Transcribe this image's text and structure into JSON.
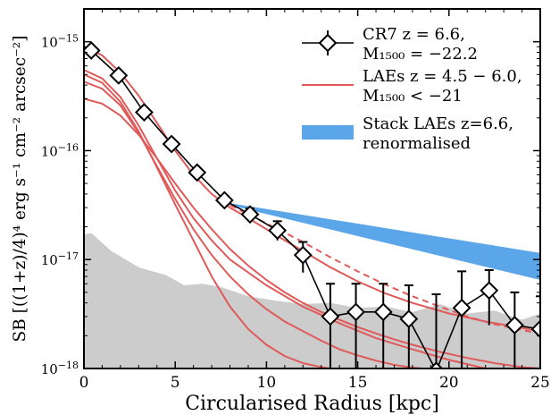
{
  "chart_data": {
    "type": "line",
    "xlabel": "Circularised Radius [kpc]",
    "ylabel": "SB [((1+z)/4)⁴ erg s⁻¹ cm⁻² arcsec⁻²]",
    "xlim": [
      0,
      25
    ],
    "ylim": [
      1e-18,
      2e-15
    ],
    "yscale": "log",
    "x_ticks": [
      0,
      5,
      10,
      15,
      20,
      25
    ],
    "x_tick_labels": [
      "0",
      "5",
      "10",
      "15",
      "20",
      "25"
    ],
    "y_ticks": [
      1e-18,
      1e-17,
      1e-16,
      1e-15
    ],
    "y_tick_labels": [
      {
        "base": "10",
        "exp": "−18"
      },
      {
        "base": "10",
        "exp": "−17"
      },
      {
        "base": "10",
        "exp": "−16"
      },
      {
        "base": "10",
        "exp": "−15"
      }
    ],
    "legend_position": "top-right",
    "legend": [
      {
        "line1": "CR7 z = 6.6,",
        "line2": "M₁₅₀₀ = −22.2",
        "marker": "diamond-errorbar",
        "color": "#000000"
      },
      {
        "line1": "LAEs z = 4.5 − 6.0,",
        "line2": "M₁₅₀₀ < −21",
        "marker": "line",
        "color": "#e05a5a"
      },
      {
        "line1": "Stack LAEs z=6.6,",
        "line2": "renormalised",
        "marker": "band",
        "color": "#5aa6e8"
      }
    ],
    "colors": {
      "cr7": "#000000",
      "laes": "#e05a5a",
      "stack": "#5aa6e8",
      "noise": "#cccccc"
    },
    "noise_background": {
      "x": [
        0,
        0.4,
        1.5,
        3.0,
        4.5,
        5.5,
        6.5,
        7.5,
        9,
        10.5,
        12,
        13.5,
        15,
        16.5,
        18,
        19.5,
        21,
        22.5,
        24,
        25
      ],
      "y": [
        1.7e-17,
        1.75e-17,
        1.2e-17,
        8.5e-18,
        7.2e-18,
        5.8e-18,
        6e-18,
        5.6e-18,
        4.6e-18,
        4.2e-18,
        3.9e-18,
        4e-18,
        3.6e-18,
        3.7e-18,
        3.3e-18,
        3.9e-18,
        3.2e-18,
        3.4e-18,
        2.8e-18,
        3.2e-18
      ]
    },
    "stack_band": {
      "x": [
        7.5,
        25
      ],
      "upper": [
        3.4e-17,
        1.15e-17
      ],
      "lower": [
        3.3e-17,
        6.5e-18
      ]
    },
    "lae_profiles": [
      {
        "x": [
          0,
          1,
          2,
          3,
          4,
          5,
          6,
          7,
          8,
          9,
          10,
          11,
          12,
          13.5,
          15,
          16.5,
          18,
          20,
          22,
          25
        ],
        "y": [
          9e-16,
          7.5e-16,
          5.2e-16,
          3.2e-16,
          1.8e-16,
          1e-16,
          6e-17,
          4e-17,
          3e-17,
          2.4e-17,
          1.9e-17,
          1.5e-17,
          1.2e-17,
          8.5e-18,
          6.3e-18,
          4.9e-18,
          4e-18,
          3.2e-18,
          2.7e-18,
          2.2e-18
        ]
      },
      {
        "x": [
          0,
          1,
          2,
          3,
          4,
          5,
          6,
          7,
          8,
          10,
          12,
          14,
          16,
          18,
          20,
          22,
          25
        ],
        "y": [
          5.5e-16,
          4.6e-16,
          3.1e-16,
          1.7e-16,
          8.5e-17,
          4.3e-17,
          2.4e-17,
          1.5e-17,
          1e-17,
          5.8e-18,
          3.7e-18,
          2.6e-18,
          1.9e-18,
          1.5e-18,
          1.2e-18,
          1e-18,
          8e-19
        ]
      },
      {
        "x": [
          0,
          1,
          2,
          3,
          4,
          5,
          6,
          7,
          8,
          9,
          10,
          11,
          12,
          13,
          13.5
        ],
        "y": [
          5e-16,
          4.2e-16,
          2.8e-16,
          1.5e-16,
          7e-17,
          3.2e-17,
          1.5e-17,
          7e-18,
          3.7e-18,
          2.3e-18,
          1.65e-18,
          1.3e-18,
          1.12e-18,
          1.03e-18,
          1e-18
        ]
      },
      {
        "x": [
          0,
          1,
          2,
          3,
          4,
          5,
          6,
          7,
          8,
          9,
          10,
          11,
          12,
          13,
          14,
          15,
          16,
          17,
          18,
          18.5
        ],
        "y": [
          4.3e-16,
          3.7e-16,
          2.6e-16,
          1.45e-16,
          7.2e-17,
          3.6e-17,
          1.9e-17,
          1.1e-17,
          7e-18,
          4.8e-18,
          3.5e-18,
          2.7e-18,
          2.2e-18,
          1.8e-18,
          1.5e-18,
          1.32e-18,
          1.18e-18,
          1.08e-18,
          1.02e-18,
          1e-18
        ]
      },
      {
        "x": [
          0,
          1,
          2,
          3,
          4,
          5,
          6,
          7,
          8,
          9,
          10,
          11,
          12,
          13,
          14,
          15,
          16,
          17,
          18,
          19.5,
          21,
          22.5,
          24,
          25
        ],
        "y": [
          3e-16,
          2.7e-16,
          2.1e-16,
          1.4e-16,
          8.5e-17,
          5e-17,
          3e-17,
          1.9e-17,
          1.25e-17,
          8.8e-18,
          6.5e-18,
          5e-18,
          4e-18,
          3.3e-18,
          2.8e-18,
          2.4e-18,
          2.1e-18,
          1.85e-18,
          1.65e-18,
          1.42e-18,
          1.25e-18,
          1.12e-18,
          1.03e-18,
          1e-18
        ]
      }
    ],
    "lae_dashed_extension": {
      "x": [
        7.5,
        9,
        10.5,
        12,
        13.5,
        15,
        16.5,
        18,
        19.5,
        21,
        22.5,
        24,
        25
      ],
      "y": [
        3.5e-17,
        2.6e-17,
        1.95e-17,
        1.45e-17,
        1.05e-17,
        7.8e-18,
        5.9e-18,
        4.6e-18,
        3.7e-18,
        3e-18,
        2.55e-18,
        2.25e-18,
        2.1e-18
      ]
    },
    "cr7_points": [
      {
        "x": 0.4,
        "y": 8.3e-16,
        "lo": 7.8e-16,
        "hi": 8.8e-16
      },
      {
        "x": 1.9,
        "y": 4.9e-16,
        "lo": 4.6e-16,
        "hi": 5.2e-16
      },
      {
        "x": 3.3,
        "y": 2.25e-16,
        "lo": 2.1e-16,
        "hi": 2.4e-16
      },
      {
        "x": 4.8,
        "y": 1.15e-16,
        "lo": 1.07e-16,
        "hi": 1.23e-16
      },
      {
        "x": 6.2,
        "y": 6.3e-17,
        "lo": 5.8e-17,
        "hi": 6.8e-17
      },
      {
        "x": 7.7,
        "y": 3.5e-17,
        "lo": 3.15e-17,
        "hi": 3.85e-17
      },
      {
        "x": 9.1,
        "y": 2.6e-17,
        "lo": 2.25e-17,
        "hi": 2.95e-17
      },
      {
        "x": 10.6,
        "y": 1.85e-17,
        "lo": 1.5e-17,
        "hi": 2.25e-17
      },
      {
        "x": 12.0,
        "y": 1.1e-17,
        "lo": 7.6e-18,
        "hi": 1.45e-17
      },
      {
        "x": 13.5,
        "y": 3e-18,
        "lo": 1e-18,
        "hi": 6e-18
      },
      {
        "x": 14.9,
        "y": 3.3e-18,
        "lo": 1e-18,
        "hi": 6e-18
      },
      {
        "x": 16.4,
        "y": 3.3e-18,
        "lo": 1e-18,
        "hi": 6e-18
      },
      {
        "x": 17.8,
        "y": 2.85e-18,
        "lo": 1e-18,
        "hi": 5.8e-18
      },
      {
        "x": 19.3,
        "y": 9.5e-19,
        "lo": 1e-18,
        "hi": 4.8e-18
      },
      {
        "x": 20.7,
        "y": 3.6e-18,
        "lo": 1e-18,
        "hi": 7.8e-18
      },
      {
        "x": 22.2,
        "y": 5.2e-18,
        "lo": 2.5e-18,
        "hi": 8e-18
      },
      {
        "x": 23.6,
        "y": 2.5e-18,
        "lo": 1e-18,
        "hi": 5e-18
      },
      {
        "x": 25.0,
        "y": 2.3e-18,
        "lo": 1e-18,
        "hi": 4.6e-18
      }
    ]
  }
}
